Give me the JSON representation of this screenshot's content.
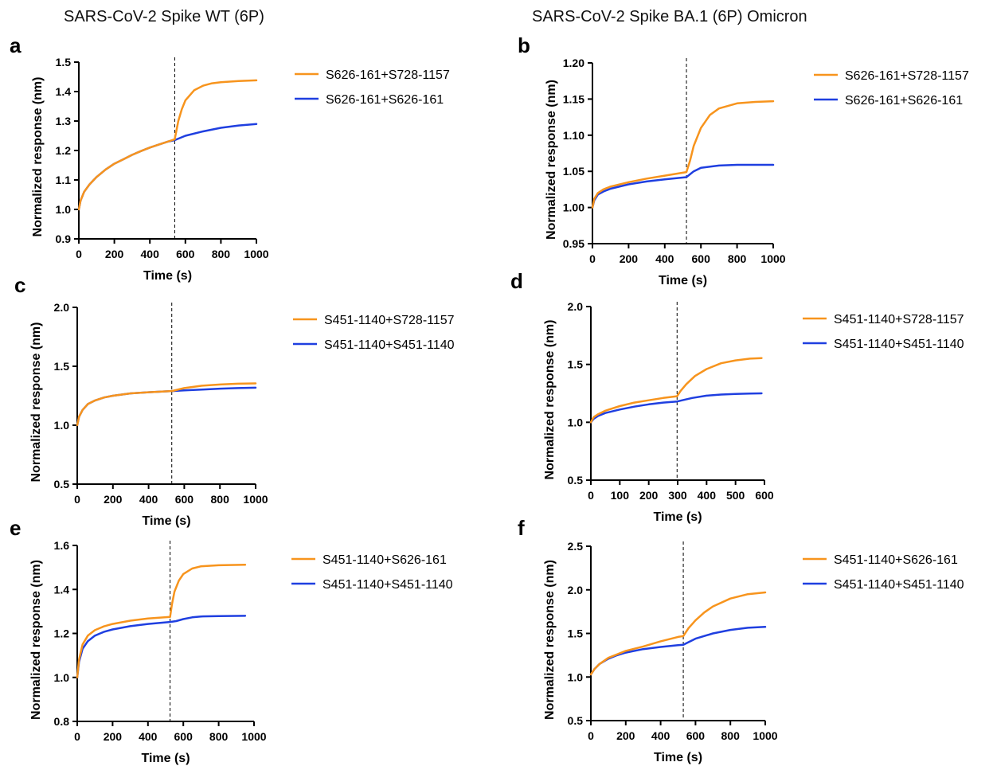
{
  "column_titles": [
    "SARS-CoV-2 Spike WT (6P)",
    "SARS-CoV-2 Spike BA.1 (6P) Omicron"
  ],
  "colors": {
    "orange": "#f7941d",
    "blue": "#1f3fe0"
  },
  "chart_data": [
    {
      "panel": "a",
      "type": "line",
      "xlabel": "Time (s)",
      "ylabel": "Normalized response (nm)",
      "xlim": [
        0,
        1000
      ],
      "ylim": [
        0.9,
        1.5
      ],
      "xticks": [
        0,
        200,
        400,
        600,
        800,
        1000
      ],
      "yticks": [
        "0.9",
        "1.0",
        "1.1",
        "1.2",
        "1.3",
        "1.4",
        "1.5"
      ],
      "dashed_x": 540,
      "legend_position": "right",
      "series": [
        {
          "name": "S626-161+S728-1157",
          "color": "orange",
          "x": [
            0,
            10,
            30,
            60,
            100,
            150,
            200,
            250,
            300,
            350,
            400,
            450,
            500,
            540,
            560,
            580,
            600,
            650,
            700,
            750,
            800,
            900,
            1000
          ],
          "y": [
            1.0,
            1.03,
            1.06,
            1.085,
            1.11,
            1.135,
            1.155,
            1.17,
            1.185,
            1.198,
            1.21,
            1.22,
            1.23,
            1.238,
            1.3,
            1.34,
            1.37,
            1.405,
            1.42,
            1.428,
            1.432,
            1.436,
            1.438
          ]
        },
        {
          "name": "S626-161+S626-161",
          "color": "blue",
          "x": [
            0,
            10,
            30,
            60,
            100,
            150,
            200,
            250,
            300,
            350,
            400,
            450,
            500,
            540,
            600,
            700,
            800,
            900,
            1000
          ],
          "y": [
            1.0,
            1.03,
            1.06,
            1.085,
            1.11,
            1.135,
            1.155,
            1.17,
            1.185,
            1.198,
            1.21,
            1.22,
            1.23,
            1.235,
            1.25,
            1.265,
            1.277,
            1.285,
            1.29
          ]
        }
      ]
    },
    {
      "panel": "b",
      "type": "line",
      "xlabel": "Time (s)",
      "ylabel": "Normalized response (nm)",
      "xlim": [
        0,
        1000
      ],
      "ylim": [
        0.95,
        1.2
      ],
      "xticks": [
        0,
        200,
        400,
        600,
        800,
        1000
      ],
      "yticks": [
        "0.95",
        "1.00",
        "1.05",
        "1.10",
        "1.15",
        "1.20"
      ],
      "dashed_x": 520,
      "legend_position": "right",
      "series": [
        {
          "name": "S626-161+S728-1157",
          "color": "orange",
          "x": [
            0,
            10,
            30,
            60,
            100,
            200,
            300,
            400,
            520,
            540,
            560,
            600,
            650,
            700,
            800,
            900,
            1000
          ],
          "y": [
            1.0,
            1.012,
            1.02,
            1.025,
            1.029,
            1.035,
            1.04,
            1.044,
            1.049,
            1.065,
            1.085,
            1.11,
            1.128,
            1.137,
            1.144,
            1.146,
            1.147
          ]
        },
        {
          "name": "S626-161+S626-161",
          "color": "blue",
          "x": [
            0,
            10,
            30,
            60,
            100,
            200,
            300,
            400,
            520,
            560,
            600,
            700,
            800,
            900,
            1000
          ],
          "y": [
            1.0,
            1.01,
            1.018,
            1.022,
            1.026,
            1.032,
            1.036,
            1.039,
            1.042,
            1.05,
            1.055,
            1.058,
            1.059,
            1.059,
            1.059
          ]
        }
      ]
    },
    {
      "panel": "c",
      "type": "line",
      "xlabel": "Time (s)",
      "ylabel": "Normalized response (nm)",
      "xlim": [
        0,
        1000
      ],
      "ylim": [
        0.5,
        2.0
      ],
      "xticks": [
        0,
        200,
        400,
        600,
        800,
        1000
      ],
      "yticks": [
        "0.5",
        "1.0",
        "1.5",
        "2.0"
      ],
      "dashed_x": 530,
      "legend_position": "right",
      "series": [
        {
          "name": "S451-1140+S728-1157",
          "color": "orange",
          "x": [
            0,
            10,
            30,
            60,
            100,
            150,
            200,
            300,
            400,
            530,
            600,
            700,
            800,
            900,
            1000
          ],
          "y": [
            1.0,
            1.07,
            1.13,
            1.18,
            1.21,
            1.235,
            1.25,
            1.27,
            1.28,
            1.29,
            1.315,
            1.335,
            1.345,
            1.352,
            1.355
          ]
        },
        {
          "name": "S451-1140+S451-1140",
          "color": "blue",
          "x": [
            0,
            10,
            30,
            60,
            100,
            150,
            200,
            300,
            400,
            530,
            600,
            700,
            800,
            900,
            1000
          ],
          "y": [
            1.0,
            1.07,
            1.13,
            1.18,
            1.21,
            1.235,
            1.25,
            1.27,
            1.28,
            1.29,
            1.295,
            1.303,
            1.31,
            1.315,
            1.318
          ]
        }
      ]
    },
    {
      "panel": "d",
      "type": "line",
      "xlabel": "Time (s)",
      "ylabel": "Normalized response (nm)",
      "xlim": [
        0,
        600
      ],
      "ylim": [
        0.5,
        2.0
      ],
      "xticks": [
        0,
        100,
        200,
        300,
        400,
        500,
        600
      ],
      "yticks": [
        "0.5",
        "1.0",
        "1.5",
        "2.0"
      ],
      "dashed_x": 298,
      "legend_position": "right",
      "series": [
        {
          "name": "S451-1140+S728-1157",
          "color": "orange",
          "x": [
            0,
            10,
            25,
            50,
            100,
            150,
            200,
            250,
            298,
            310,
            330,
            360,
            400,
            450,
            500,
            550,
            590
          ],
          "y": [
            1.0,
            1.045,
            1.07,
            1.1,
            1.14,
            1.17,
            1.19,
            1.21,
            1.225,
            1.27,
            1.33,
            1.4,
            1.46,
            1.51,
            1.535,
            1.55,
            1.555
          ]
        },
        {
          "name": "S451-1140+S451-1140",
          "color": "blue",
          "x": [
            0,
            10,
            25,
            50,
            100,
            150,
            200,
            250,
            298,
            350,
            400,
            450,
            500,
            550,
            590
          ],
          "y": [
            1.0,
            1.03,
            1.055,
            1.08,
            1.11,
            1.135,
            1.155,
            1.17,
            1.18,
            1.21,
            1.23,
            1.24,
            1.245,
            1.248,
            1.25
          ]
        }
      ]
    },
    {
      "panel": "e",
      "type": "line",
      "xlabel": "Time (s)",
      "ylabel": "Normalized response (nm)",
      "xlim": [
        0,
        1000
      ],
      "ylim": [
        0.8,
        1.6
      ],
      "xticks": [
        0,
        200,
        400,
        600,
        800,
        1000
      ],
      "yticks": [
        "0.8",
        "1.0",
        "1.2",
        "1.4",
        "1.6"
      ],
      "dashed_x": 525,
      "legend_position": "right",
      "series": [
        {
          "name": "S451-1140+S626-161",
          "color": "orange",
          "x": [
            0,
            10,
            30,
            60,
            100,
            150,
            200,
            300,
            400,
            525,
            535,
            550,
            575,
            600,
            650,
            700,
            800,
            950
          ],
          "y": [
            1.0,
            1.08,
            1.15,
            1.19,
            1.215,
            1.232,
            1.243,
            1.258,
            1.268,
            1.275,
            1.33,
            1.39,
            1.44,
            1.47,
            1.495,
            1.505,
            1.51,
            1.512
          ]
        },
        {
          "name": "S451-1140+S451-1140",
          "color": "blue",
          "x": [
            0,
            10,
            30,
            60,
            100,
            150,
            200,
            300,
            400,
            525,
            560,
            600,
            650,
            700,
            800,
            950
          ],
          "y": [
            1.0,
            1.07,
            1.13,
            1.165,
            1.19,
            1.207,
            1.218,
            1.233,
            1.243,
            1.252,
            1.256,
            1.265,
            1.273,
            1.277,
            1.279,
            1.28
          ]
        }
      ]
    },
    {
      "panel": "f",
      "type": "line",
      "xlabel": "Time (s)",
      "ylabel": "Normalized response (nm)",
      "xlim": [
        0,
        1000
      ],
      "ylim": [
        0.5,
        2.5
      ],
      "xticks": [
        0,
        200,
        400,
        600,
        800,
        1000
      ],
      "yticks": [
        "0.5",
        "1.0",
        "1.5",
        "2.0",
        "2.5"
      ],
      "dashed_x": 530,
      "legend_position": "right",
      "series": [
        {
          "name": "S451-1140+S626-161",
          "color": "orange",
          "x": [
            0,
            20,
            50,
            100,
            150,
            200,
            300,
            400,
            500,
            530,
            560,
            600,
            650,
            700,
            800,
            900,
            1000
          ],
          "y": [
            1.03,
            1.09,
            1.15,
            1.22,
            1.26,
            1.3,
            1.35,
            1.41,
            1.46,
            1.47,
            1.56,
            1.65,
            1.74,
            1.81,
            1.9,
            1.95,
            1.97
          ]
        },
        {
          "name": "S451-1140+S451-1140",
          "color": "blue",
          "x": [
            0,
            20,
            50,
            100,
            150,
            200,
            300,
            400,
            500,
            530,
            560,
            600,
            700,
            800,
            900,
            1000
          ],
          "y": [
            1.03,
            1.09,
            1.15,
            1.21,
            1.25,
            1.28,
            1.32,
            1.345,
            1.365,
            1.37,
            1.4,
            1.44,
            1.5,
            1.54,
            1.565,
            1.575
          ]
        }
      ]
    }
  ]
}
